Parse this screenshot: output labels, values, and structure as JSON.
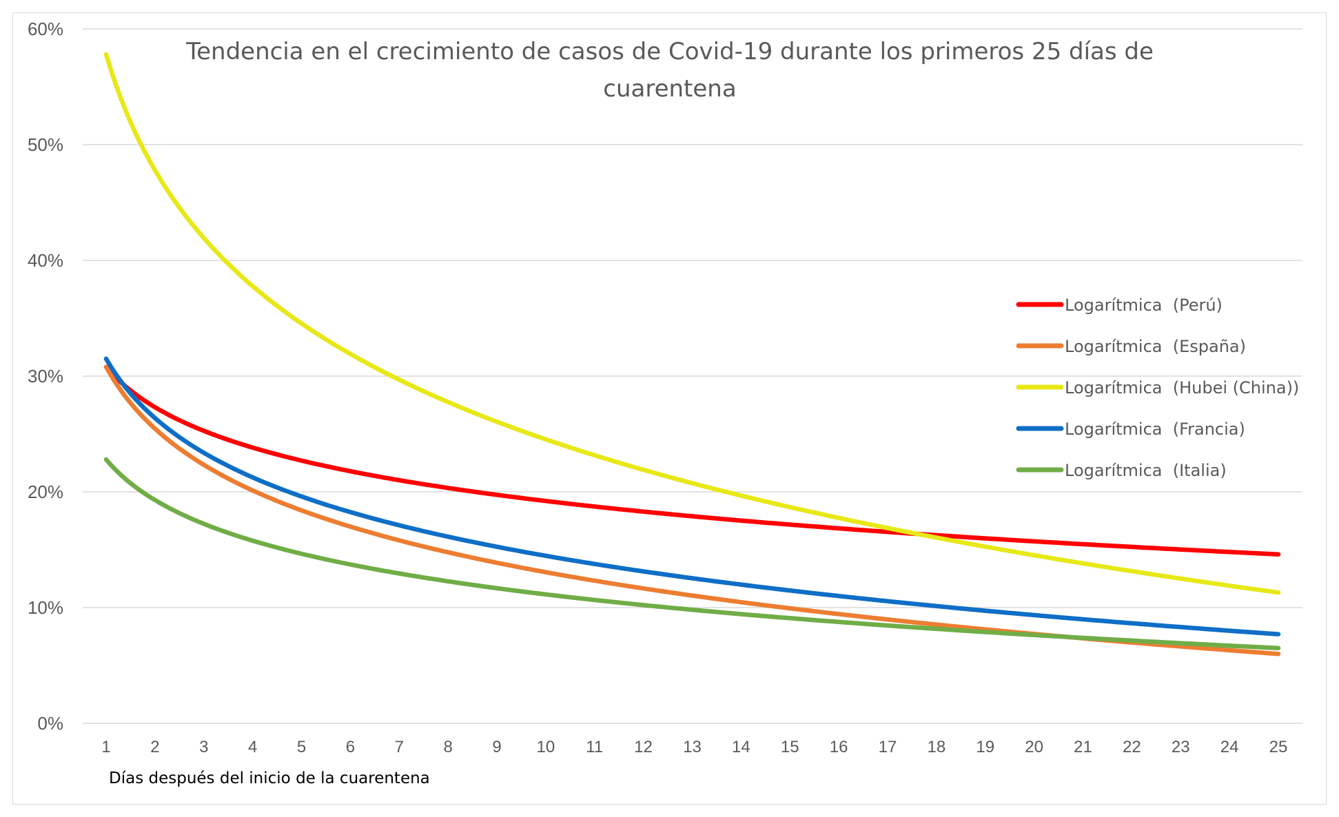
{
  "chart_data": {
    "type": "line",
    "title_lines": [
      "Tendencia en el crecimiento de casos de Covid-19 durante los primeros 25 días de",
      "cuarentena"
    ],
    "xlabel": "Días después del inicio de la cuarentena",
    "ylabel": "",
    "x": [
      1,
      2,
      3,
      4,
      5,
      6,
      7,
      8,
      9,
      10,
      11,
      12,
      13,
      14,
      15,
      16,
      17,
      18,
      19,
      20,
      21,
      22,
      23,
      24,
      25
    ],
    "xlim": [
      1,
      25
    ],
    "ylim": [
      0,
      60
    ],
    "yticks": [
      "0%",
      "10%",
      "20%",
      "30%",
      "40%",
      "50%",
      "60%"
    ],
    "grid": true,
    "legend_position": "right",
    "series": [
      {
        "name": "Logarítmica  (Perú)",
        "color": "#ff0000",
        "start": 30.8,
        "end": 14.6
      },
      {
        "name": "Logarítmica  (España)",
        "color": "#ed7d31",
        "start": 30.8,
        "end": 6.0
      },
      {
        "name": "Logarítmica  (Hubei (China))",
        "color": "#e8e817",
        "start": 57.8,
        "end": 11.3
      },
      {
        "name": "Logarítmica  (Francia)",
        "color": "#0f6ec6",
        "start": 31.5,
        "end": 7.7
      },
      {
        "name": "Logarítmica  (Italia)",
        "color": "#70ad47",
        "start": 22.8,
        "end": 6.5
      }
    ]
  }
}
